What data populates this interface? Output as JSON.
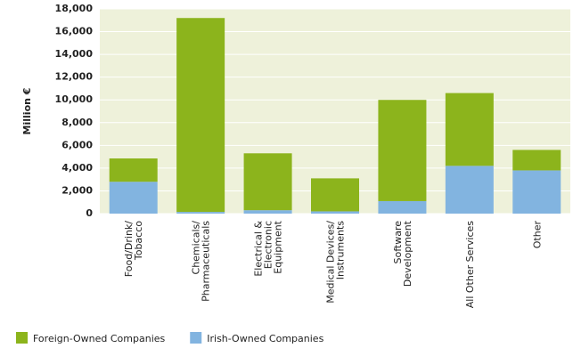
{
  "chart_data": {
    "type": "stacked_bar",
    "y_label": "Million €",
    "categories": [
      [
        "Food/Drink/",
        "Tobacco"
      ],
      [
        "Chemicals/",
        "Pharmaceuticals"
      ],
      [
        "Electrical &",
        "Electronic",
        "Equipment"
      ],
      [
        "Medical Devices/",
        "Instruments"
      ],
      [
        "Software",
        "Development"
      ],
      [
        "All Other Services"
      ],
      [
        "Other"
      ]
    ],
    "series": [
      {
        "name": "Foreign-Owned Companies",
        "color": "#8cb41c",
        "values": [
          2050,
          17050,
          5000,
          2900,
          8900,
          6400,
          1800
        ]
      },
      {
        "name": "Irish-Owned Companies",
        "color": "#82b4e0",
        "values": [
          2800,
          150,
          300,
          200,
          1100,
          4200,
          3800
        ]
      }
    ],
    "ylim": [
      0,
      18000
    ],
    "yticks": [
      0,
      {
        "value": 2000,
        "label": "2,000"
      },
      {
        "value": 4000,
        "label": "4,000"
      },
      {
        "value": 6000,
        "label": "6,000"
      },
      {
        "value": 8000,
        "label": "8,000"
      },
      {
        "value": 10000,
        "label": "10,000"
      },
      {
        "value": 12000,
        "label": "12,000"
      },
      {
        "value": 14000,
        "label": "14,000"
      },
      {
        "value": 16000,
        "label": "16,000"
      },
      {
        "value": 18000,
        "label": "18,000"
      }
    ],
    "grid": true
  }
}
